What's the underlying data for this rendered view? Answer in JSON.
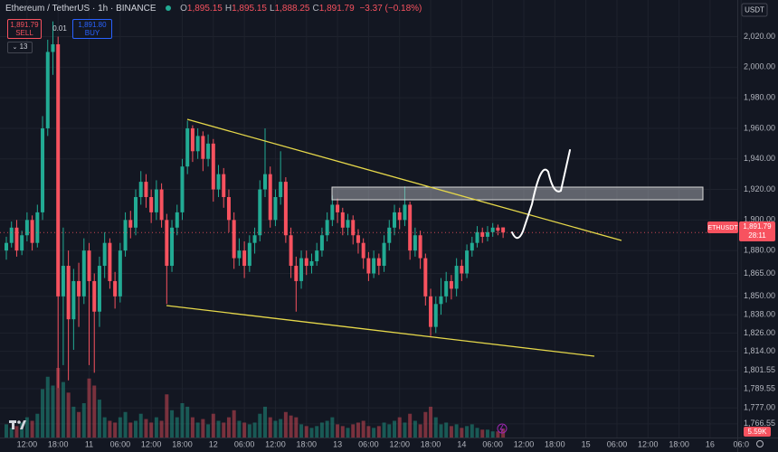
{
  "chart_data": {
    "type": "candlestick",
    "title": "Ethereum / TetherUS · 1h · BINANCE",
    "ohlc": [
      {
        "label": "O",
        "value": "1,895.15"
      },
      {
        "label": "H",
        "value": "1,895.15"
      },
      {
        "label": "L",
        "value": "1,888.25"
      },
      {
        "label": "C",
        "value": "1,891.79"
      }
    ],
    "change": "−3.37 (−0.18%)",
    "sell_price": "1,891.79",
    "sell_label": "SELL",
    "quantity": "0.01",
    "buy_price": "1,891.80",
    "buy_label": "BUY",
    "indicator_count": "13",
    "currency": "USDT",
    "symbol_tag": "ETHUSDT",
    "last_price": "1,891.79",
    "countdown": "28:11",
    "volume_label": "5.59K",
    "up_color": "#22ab94",
    "down_color": "#f7525f",
    "grid": true,
    "ylim": [
      1757,
      2044
    ],
    "yticks": [
      {
        "value": 2020,
        "label": "2,020.00"
      },
      {
        "value": 2000,
        "label": "2,000.00"
      },
      {
        "value": 1980,
        "label": "1,980.00"
      },
      {
        "value": 1960,
        "label": "1,960.00"
      },
      {
        "value": 1940,
        "label": "1,940.00"
      },
      {
        "value": 1920,
        "label": "1,920.00"
      },
      {
        "value": 1900,
        "label": "1,900.00"
      },
      {
        "value": 1880,
        "label": "1,880.00"
      },
      {
        "value": 1865,
        "label": "1,865.00"
      },
      {
        "value": 1850,
        "label": "1,850.00"
      },
      {
        "value": 1838,
        "label": "1,838.00"
      },
      {
        "value": 1826,
        "label": "1,826.00"
      },
      {
        "value": 1814,
        "label": "1,814.00"
      },
      {
        "value": 1801.55,
        "label": "1,801.55"
      },
      {
        "value": 1789.55,
        "label": "1,789.55"
      },
      {
        "value": 1777,
        "label": "1,777.00"
      },
      {
        "value": 1766.55,
        "label": "1,766.55"
      }
    ],
    "categories": [
      null,
      null,
      null,
      null,
      "12:00",
      null,
      null,
      null,
      null,
      null,
      "18:00",
      null,
      null,
      null,
      null,
      null,
      "11",
      null,
      null,
      null,
      null,
      null,
      "06:00",
      null,
      null,
      null,
      null,
      null,
      "12:00",
      null,
      null,
      null,
      null,
      null,
      "18:00",
      null,
      null,
      null,
      null,
      null,
      "12",
      null,
      null,
      null,
      null,
      null,
      "06:00",
      null,
      null,
      null,
      null,
      null,
      "12:00",
      null,
      null,
      null,
      null,
      null,
      "18:00",
      null,
      null,
      null,
      null,
      null,
      "13",
      null,
      null,
      null,
      null,
      null,
      "06:00",
      null,
      null,
      null,
      null,
      null,
      "12:00",
      null,
      null,
      null,
      null,
      null,
      "18:00",
      null,
      null,
      null,
      null,
      null,
      "14",
      null,
      null,
      null,
      null,
      null,
      "06:00",
      null,
      null,
      null,
      null,
      null,
      "12:00",
      null,
      null,
      null,
      null,
      null,
      "18:00",
      null,
      null,
      null,
      null,
      null,
      "15",
      null,
      null,
      null,
      null,
      null,
      "06:00",
      null,
      null,
      null,
      null,
      null,
      "12:00",
      null,
      null,
      null,
      null,
      null,
      "18:00",
      null,
      null,
      null,
      null,
      null,
      "16",
      null,
      null,
      null,
      null,
      null,
      "06:0"
    ],
    "open": [
      1880,
      1885,
      1895,
      1880,
      1890,
      1900,
      1885,
      1905,
      1960,
      2010,
      2015,
      1850,
      1870,
      1835,
      1860,
      1850,
      1880,
      1860,
      1840,
      1870,
      1885,
      1860,
      1850,
      1880,
      1900,
      1895,
      1915,
      1925,
      1915,
      1905,
      1920,
      1900,
      1870,
      1895,
      1905,
      1935,
      1960,
      1945,
      1955,
      1940,
      1950,
      1920,
      1930,
      1915,
      1900,
      1875,
      1880,
      1870,
      1885,
      1890,
      1920,
      1930,
      1900,
      1915,
      1925,
      1890,
      1870,
      1860,
      1875,
      1870,
      1873,
      1880,
      1890,
      1900,
      1910,
      1905,
      1895,
      1900,
      1890,
      1885,
      1875,
      1865,
      1875,
      1870,
      1885,
      1895,
      1905,
      1900,
      1910,
      1880,
      1890,
      1875,
      1850,
      1830,
      1845,
      1850,
      1860,
      1855,
      1870,
      1865,
      1880,
      1885,
      1892,
      1889,
      1892,
      1895,
      1895.15,
      null,
      null,
      null,
      null,
      null,
      null,
      null,
      null,
      null,
      null,
      null,
      null,
      null,
      null,
      null,
      null,
      null,
      null,
      null,
      null,
      null,
      null,
      null,
      null,
      null,
      null,
      null,
      null,
      null,
      null,
      null,
      null,
      null,
      null,
      null,
      null,
      null,
      null,
      null,
      null,
      null,
      null,
      null,
      null,
      null,
      null
    ],
    "high": [
      1889,
      1899,
      1900,
      1893,
      1905,
      1903,
      1910,
      1968,
      2018,
      2030,
      2020,
      1895,
      1880,
      1868,
      1872,
      1888,
      1885,
      1865,
      1876,
      1892,
      1888,
      1866,
      1885,
      1905,
      1906,
      1920,
      1932,
      1930,
      1920,
      1926,
      1924,
      1904,
      1900,
      1910,
      1940,
      1965,
      1962,
      1960,
      1958,
      1956,
      1953,
      1936,
      1934,
      1920,
      1905,
      1888,
      1886,
      1890,
      1895,
      1926,
      1960,
      1935,
      1920,
      1945,
      1928,
      1895,
      1876,
      1880,
      1880,
      1878,
      1885,
      1895,
      1905,
      1916,
      1914,
      1908,
      1904,
      1903,
      1894,
      1888,
      1879,
      1880,
      1878,
      1890,
      1900,
      1910,
      1908,
      1922,
      1912,
      1895,
      1893,
      1878,
      1855,
      1850,
      1862,
      1866,
      1864,
      1875,
      1874,
      1884,
      1889,
      1896,
      1895,
      1896,
      1898,
      1897,
      1895.15,
      null,
      null,
      null,
      null,
      null,
      null,
      null,
      null,
      null,
      null,
      null,
      null,
      null,
      null,
      null,
      null,
      null,
      null,
      null,
      null,
      null,
      null,
      null,
      null,
      null,
      null,
      null,
      null,
      null,
      null,
      null,
      null,
      null,
      null,
      null,
      null,
      null,
      null,
      null,
      null,
      null,
      null,
      null,
      null,
      null,
      null
    ],
    "low": [
      1874,
      1882,
      1876,
      1877,
      1886,
      1880,
      1882,
      1900,
      1955,
      1995,
      1790,
      1805,
      1795,
      1815,
      1830,
      1845,
      1805,
      1800,
      1830,
      1862,
      1855,
      1842,
      1846,
      1876,
      1888,
      1890,
      1910,
      1908,
      1898,
      1900,
      1895,
      1845,
      1866,
      1890,
      1900,
      1930,
      1938,
      1940,
      1932,
      1935,
      1912,
      1915,
      1908,
      1892,
      1868,
      1870,
      1862,
      1866,
      1878,
      1886,
      1915,
      1895,
      1896,
      1910,
      1885,
      1862,
      1840,
      1855,
      1864,
      1865,
      1870,
      1876,
      1886,
      1896,
      1898,
      1890,
      1890,
      1884,
      1878,
      1868,
      1860,
      1862,
      1864,
      1866,
      1880,
      1890,
      1894,
      1896,
      1874,
      1876,
      1868,
      1844,
      1824,
      1826,
      1838,
      1846,
      1848,
      1850,
      1860,
      1862,
      1876,
      1882,
      1885,
      1886,
      1889,
      1890,
      1888.25,
      null,
      null,
      null,
      null,
      null,
      null,
      null,
      null,
      null,
      null,
      null,
      null,
      null,
      null,
      null,
      null,
      null,
      null,
      null,
      null,
      null,
      null,
      null,
      null,
      null,
      null,
      null,
      null,
      null,
      null,
      null,
      null,
      null,
      null,
      null,
      null,
      null,
      null,
      null,
      null,
      null,
      null,
      null,
      null,
      null,
      null
    ],
    "close": [
      1885,
      1895,
      1880,
      1890,
      1900,
      1885,
      1905,
      1960,
      2010,
      2015,
      1850,
      1870,
      1835,
      1860,
      1850,
      1880,
      1860,
      1840,
      1870,
      1885,
      1860,
      1850,
      1880,
      1900,
      1895,
      1915,
      1925,
      1915,
      1905,
      1920,
      1900,
      1870,
      1895,
      1905,
      1935,
      1960,
      1945,
      1955,
      1940,
      1950,
      1920,
      1930,
      1915,
      1900,
      1875,
      1880,
      1870,
      1885,
      1890,
      1920,
      1930,
      1900,
      1915,
      1925,
      1890,
      1870,
      1860,
      1875,
      1870,
      1873,
      1880,
      1890,
      1900,
      1910,
      1905,
      1895,
      1900,
      1890,
      1885,
      1875,
      1865,
      1875,
      1870,
      1885,
      1895,
      1905,
      1900,
      1910,
      1880,
      1890,
      1875,
      1850,
      1830,
      1845,
      1850,
      1860,
      1855,
      1870,
      1865,
      1880,
      1885,
      1892,
      1889,
      1892,
      1895,
      1893,
      1891.79,
      null,
      null,
      null,
      null,
      null,
      null,
      null,
      null,
      null,
      null,
      null,
      null,
      null,
      null,
      null,
      null,
      null,
      null,
      null,
      null,
      null,
      null,
      null,
      null,
      null,
      null,
      null,
      null,
      null,
      null,
      null,
      null,
      null,
      null,
      null,
      null,
      null,
      null,
      null,
      null,
      null,
      null,
      null,
      null,
      null,
      null
    ],
    "volume": [
      8,
      6,
      7,
      9,
      12,
      10,
      14,
      28,
      35,
      30,
      40,
      32,
      26,
      18,
      15,
      20,
      34,
      30,
      22,
      12,
      10,
      9,
      12,
      15,
      9,
      10,
      14,
      11,
      9,
      12,
      10,
      25,
      16,
      12,
      20,
      18,
      12,
      9,
      11,
      8,
      14,
      10,
      9,
      12,
      16,
      10,
      9,
      8,
      9,
      14,
      18,
      12,
      10,
      11,
      15,
      13,
      12,
      8,
      7,
      6,
      7,
      9,
      10,
      12,
      8,
      7,
      6,
      8,
      9,
      10,
      7,
      6,
      7,
      9,
      8,
      10,
      12,
      9,
      14,
      10,
      8,
      15,
      18,
      12,
      8,
      9,
      7,
      8,
      6,
      7,
      8,
      6,
      5,
      5,
      4,
      4,
      5.59,
      null,
      null,
      null,
      null,
      null,
      null,
      null,
      null,
      null,
      null,
      null,
      null,
      null,
      null,
      null,
      null,
      null,
      null,
      null,
      null,
      null,
      null,
      null,
      null,
      null,
      null,
      null,
      null,
      null,
      null,
      null,
      null,
      null,
      null,
      null,
      null,
      null,
      null,
      null,
      null,
      null,
      null,
      null,
      null,
      null,
      null
    ]
  }
}
